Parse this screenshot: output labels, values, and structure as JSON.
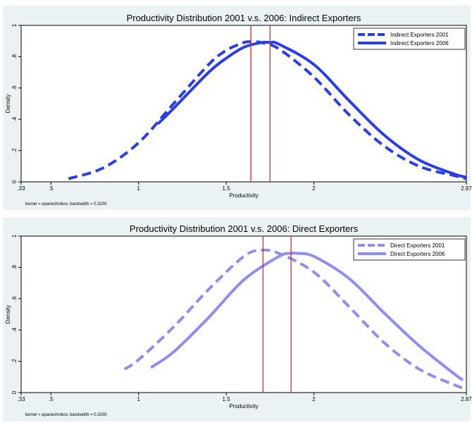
{
  "chart_data": [
    {
      "type": "line",
      "title": "Productivity Distribution 2001 v.s. 2006: Indirect Exporters",
      "xlabel": "Productivity",
      "ylabel": "Density",
      "note": "kernel = epanechnikov, bandwidth = 0.3200",
      "xlim": [
        0.33,
        2.87
      ],
      "ylim": [
        0,
        1
      ],
      "x_ticks": [
        0.33,
        0.5,
        1,
        1.5,
        2,
        2.87
      ],
      "x_tick_labels": [
        ".33",
        ".5",
        "1",
        "1.5",
        "2",
        "2.87"
      ],
      "y_ticks": [
        0,
        0.2,
        0.4,
        0.6,
        0.8,
        1
      ],
      "y_tick_labels": [
        "0",
        ".2",
        ".4",
        ".6",
        ".8",
        "1"
      ],
      "legend_position": "top-right",
      "vlines": [
        1.64,
        1.75
      ],
      "series": [
        {
          "name": "Indirect Exporters 2001",
          "style": "dashed",
          "color": "#2a3ee8",
          "x": [
            0.6,
            0.8,
            1.0,
            1.2,
            1.4,
            1.5,
            1.6,
            1.64,
            1.7,
            1.8,
            2.0,
            2.2,
            2.4,
            2.6,
            2.8,
            2.87
          ],
          "y": [
            0.02,
            0.09,
            0.25,
            0.5,
            0.75,
            0.84,
            0.89,
            0.895,
            0.89,
            0.85,
            0.67,
            0.43,
            0.23,
            0.1,
            0.04,
            0.02
          ]
        },
        {
          "name": "Indirect Exporters 2006",
          "style": "solid",
          "color": "#2a3ee8",
          "x": [
            1.11,
            1.2,
            1.4,
            1.5,
            1.6,
            1.7,
            1.75,
            1.8,
            2.0,
            2.2,
            2.4,
            2.6,
            2.8,
            2.87
          ],
          "y": [
            0.37,
            0.47,
            0.7,
            0.79,
            0.86,
            0.89,
            0.89,
            0.88,
            0.75,
            0.52,
            0.3,
            0.14,
            0.05,
            0.03
          ]
        }
      ]
    },
    {
      "type": "line",
      "title": "Productivity Distribution 2001 v.s. 2006: Direct Exporters",
      "xlabel": "Productivity",
      "ylabel": "Density",
      "note": "kernel = epanechnikov, bandwidth = 0.3200",
      "xlim": [
        0.33,
        2.87
      ],
      "ylim": [
        0,
        1
      ],
      "x_ticks": [
        0.33,
        0.5,
        1,
        1.5,
        2,
        2.87
      ],
      "x_tick_labels": [
        ".33",
        ".5",
        "1",
        "1.5",
        "2",
        "2.87"
      ],
      "y_ticks": [
        0,
        0.2,
        0.4,
        0.6,
        0.8,
        1
      ],
      "y_tick_labels": [
        "0",
        ".2",
        ".4",
        ".6",
        ".8",
        "1"
      ],
      "legend_position": "top-right",
      "vlines": [
        1.71,
        1.87
      ],
      "series": [
        {
          "name": "Direct Exporters 2001",
          "style": "dashed",
          "color": "#8f8ef0",
          "x": [
            0.92,
            1.0,
            1.2,
            1.4,
            1.6,
            1.7,
            1.8,
            2.0,
            2.2,
            2.4,
            2.6,
            2.8,
            2.85
          ],
          "y": [
            0.15,
            0.21,
            0.42,
            0.66,
            0.87,
            0.91,
            0.89,
            0.77,
            0.55,
            0.32,
            0.15,
            0.05,
            0.03
          ]
        },
        {
          "name": "Direct Exporters 2006",
          "style": "solid",
          "color": "#8f8ef0",
          "x": [
            1.07,
            1.2,
            1.4,
            1.6,
            1.8,
            1.87,
            1.9,
            2.0,
            2.2,
            2.4,
            2.6,
            2.8,
            2.85
          ],
          "y": [
            0.16,
            0.26,
            0.48,
            0.72,
            0.87,
            0.89,
            0.89,
            0.87,
            0.73,
            0.51,
            0.3,
            0.12,
            0.08
          ]
        }
      ]
    }
  ]
}
